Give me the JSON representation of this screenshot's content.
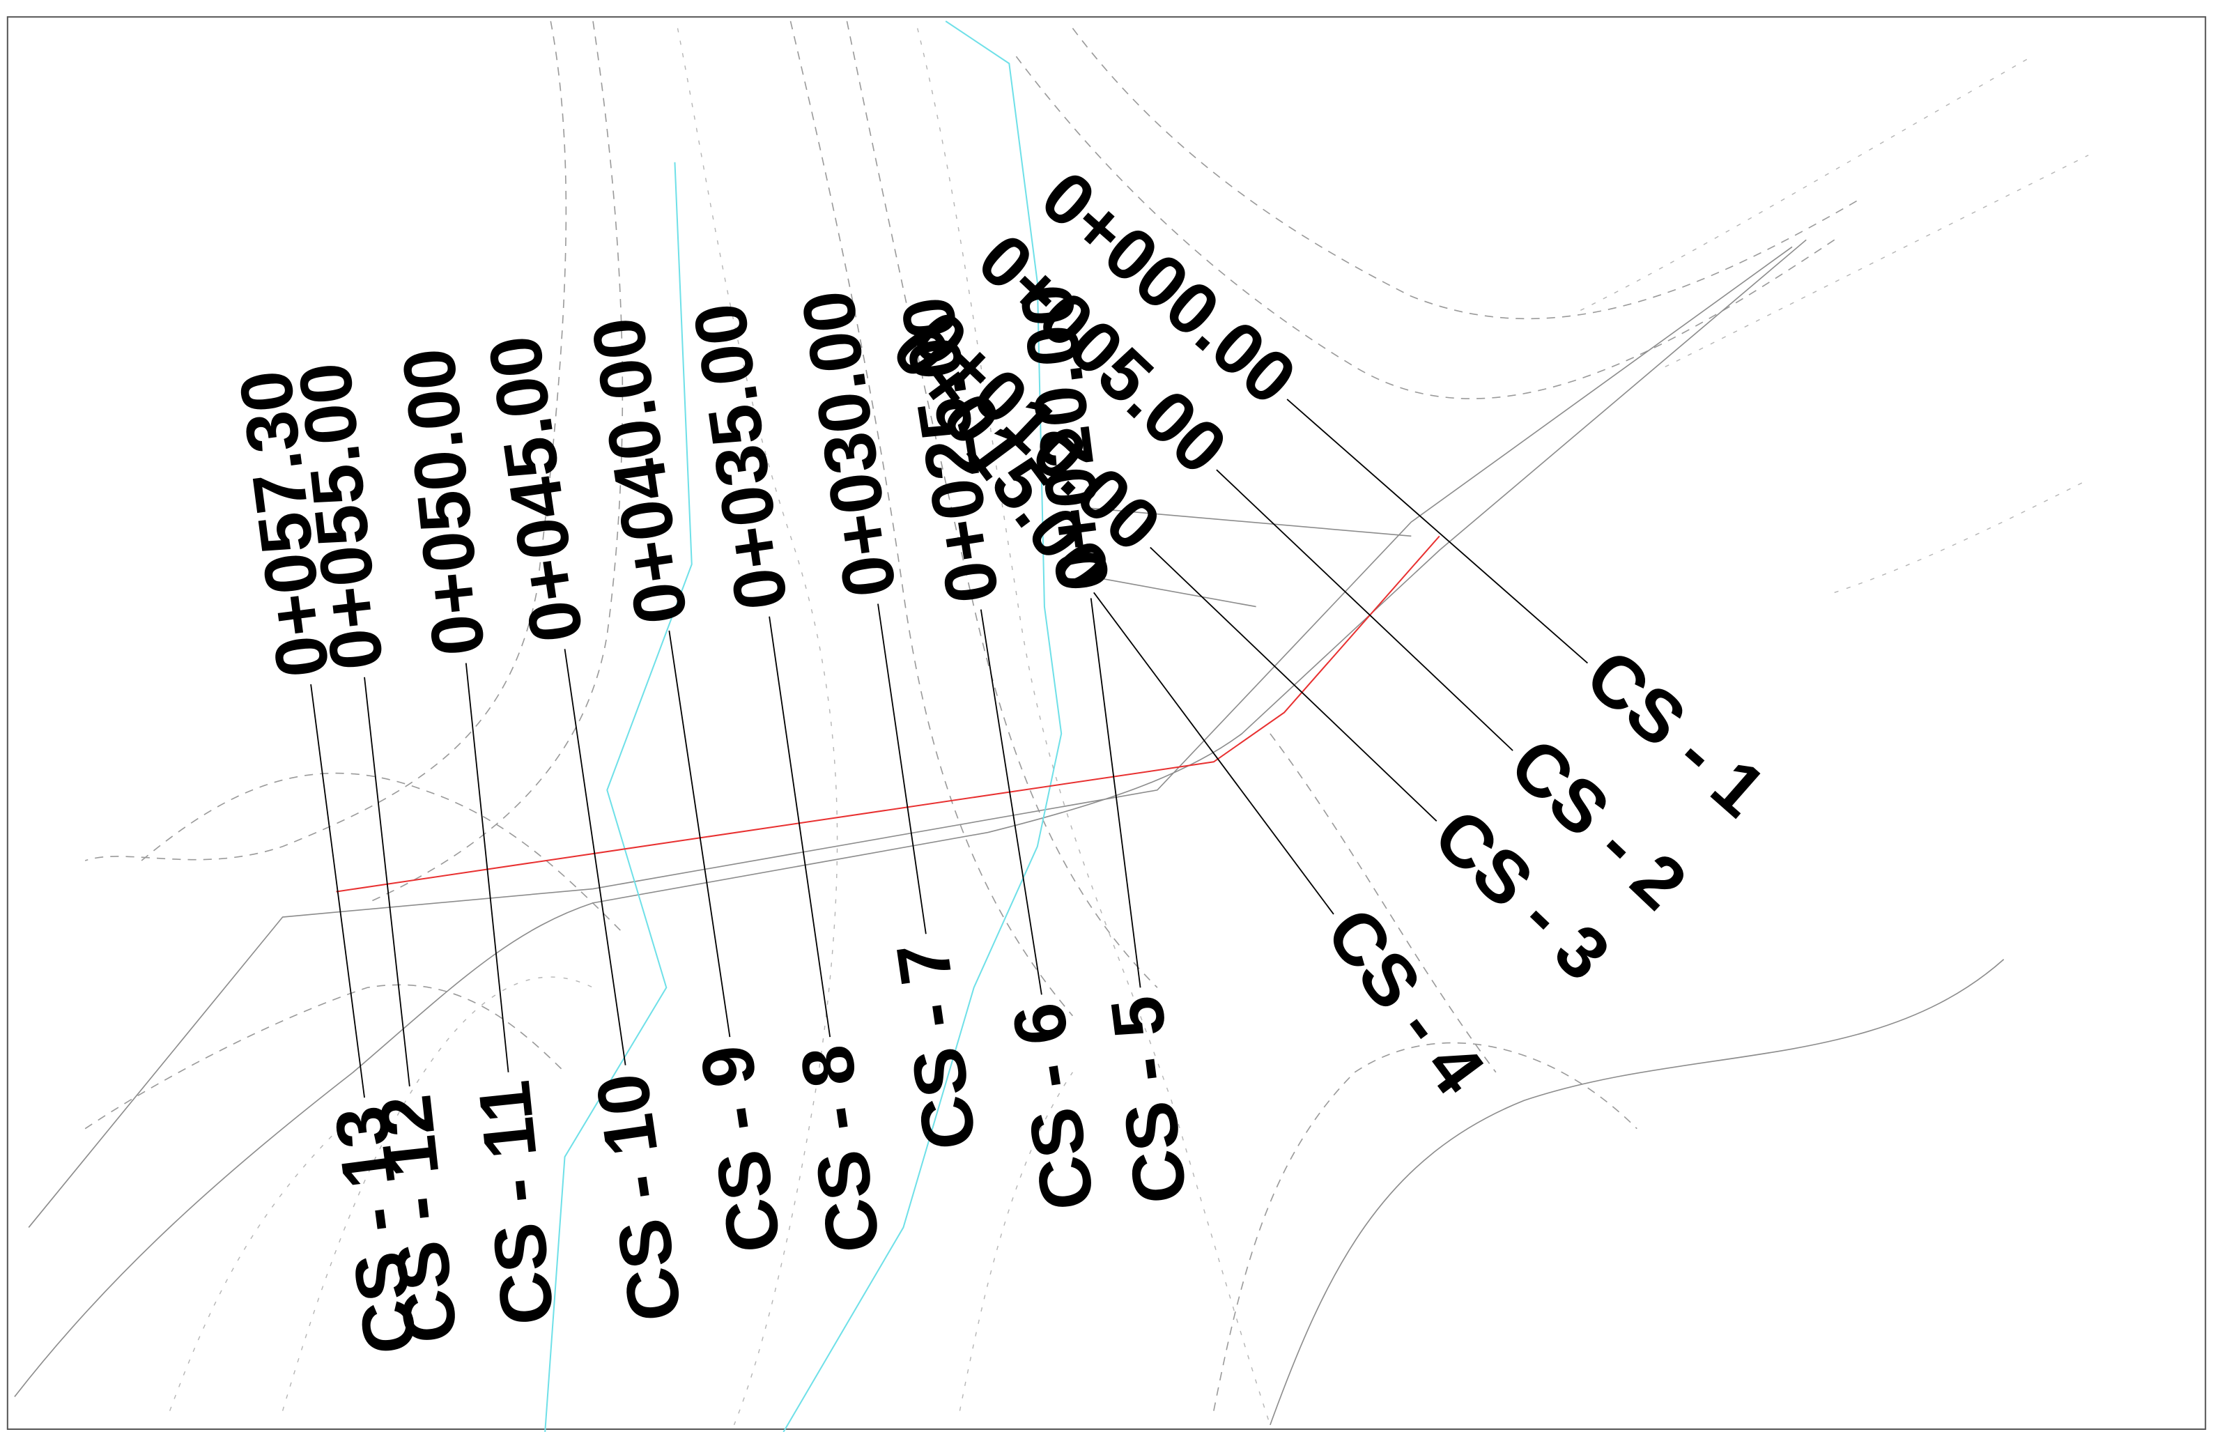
{
  "sections": [
    {
      "station": "0+000.00",
      "label": "CS - 1"
    },
    {
      "station": "0+005.00",
      "label": "CS - 2"
    },
    {
      "station": "0+010.00",
      "label": "CS - 3"
    },
    {
      "station": "0+015.00",
      "label": "CS - 4"
    },
    {
      "station": "0+020.00",
      "label": "CS - 5"
    },
    {
      "station": "0+025.00",
      "label": "CS - 6"
    },
    {
      "station": "0+030.00",
      "label": "CS - 7"
    },
    {
      "station": "0+035.00",
      "label": "CS - 8"
    },
    {
      "station": "0+040.00",
      "label": "CS - 9"
    },
    {
      "station": "0+045.00",
      "label": "CS - 10"
    },
    {
      "station": "0+050.00",
      "label": "CS - 11"
    },
    {
      "station": "0+055.00",
      "label": "CS - 12"
    },
    {
      "station": "0+057.30",
      "label": "CS - 13"
    }
  ]
}
